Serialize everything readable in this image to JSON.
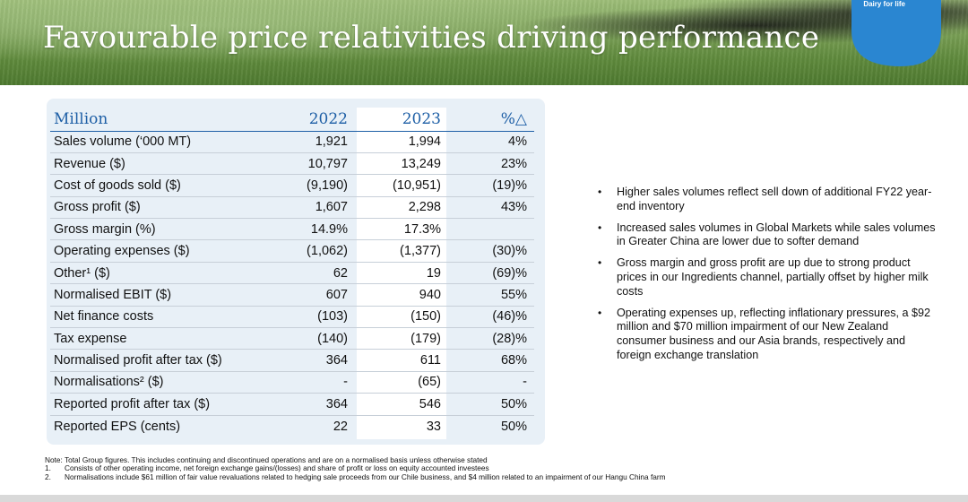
{
  "header": {
    "title": "Favourable price relativities driving performance",
    "logo_text": "Dairy for life",
    "accent": "#1e5fa6"
  },
  "table": {
    "columns": [
      "Million",
      "2022",
      "2023",
      "%△"
    ],
    "rows": [
      {
        "label": "Sales volume (‘000 MT)",
        "y2022": "1,921",
        "y2023": "1,994",
        "pct": "4%"
      },
      {
        "label": "Revenue ($)",
        "y2022": "10,797",
        "y2023": "13,249",
        "pct": "23%"
      },
      {
        "label": "Cost of goods sold ($)",
        "y2022": "(9,190)",
        "y2023": "(10,951)",
        "pct": "(19)%"
      },
      {
        "label": "Gross profit ($)",
        "y2022": "1,607",
        "y2023": "2,298",
        "pct": "43%"
      },
      {
        "label": "Gross margin (%)",
        "y2022": "14.9%",
        "y2023": "17.3%",
        "pct": ""
      },
      {
        "label": "Operating expenses ($)",
        "y2022": "(1,062)",
        "y2023": "(1,377)",
        "pct": "(30)%"
      },
      {
        "label": "Other¹ ($)",
        "y2022": "62",
        "y2023": "19",
        "pct": "(69)%"
      },
      {
        "label": "Normalised EBIT ($)",
        "y2022": "607",
        "y2023": "940",
        "pct": "55%"
      },
      {
        "label": "Net finance costs",
        "y2022": "(103)",
        "y2023": "(150)",
        "pct": "(46)%"
      },
      {
        "label": "Tax expense",
        "y2022": "(140)",
        "y2023": "(179)",
        "pct": "(28)%"
      },
      {
        "label": "Normalised profit after tax ($)",
        "y2022": "364",
        "y2023": "611",
        "pct": "68%"
      },
      {
        "label": "Normalisations² ($)",
        "y2022": "-",
        "y2023": "(65)",
        "pct": "-"
      },
      {
        "label": "Reported profit after tax ($)",
        "y2022": "364",
        "y2023": "546",
        "pct": "50%"
      },
      {
        "label": "Reported EPS (cents)",
        "y2022": "22",
        "y2023": "33",
        "pct": "50%"
      }
    ]
  },
  "bullets": [
    "Higher sales volumes reflect sell down of additional FY22 year-end inventory",
    "Increased sales volumes in Global Markets while sales volumes in Greater China are lower due to softer demand",
    "Gross margin and gross profit are up due to strong product prices in our Ingredients channel, partially offset by higher milk costs",
    "Operating expenses up, reflecting inflationary pressures, a $92 million and $70 million impairment of our New Zealand consumer business and our Asia brands, respectively and foreign exchange translation"
  ],
  "footnotes": {
    "note": "Note: Total Group figures. This includes continuing and discontinued operations and are on a normalised basis unless otherwise stated",
    "items": [
      {
        "num": "1.",
        "text": "Consists of other operating income, net foreign exchange gains/(losses) and share of profit or loss on equity accounted investees"
      },
      {
        "num": "2.",
        "text": "Normalisations include $61 million of fair value revaluations related to hedging sale proceeds from our Chile business, and $4 million related to an impairment of our Hangu China farm"
      }
    ]
  }
}
